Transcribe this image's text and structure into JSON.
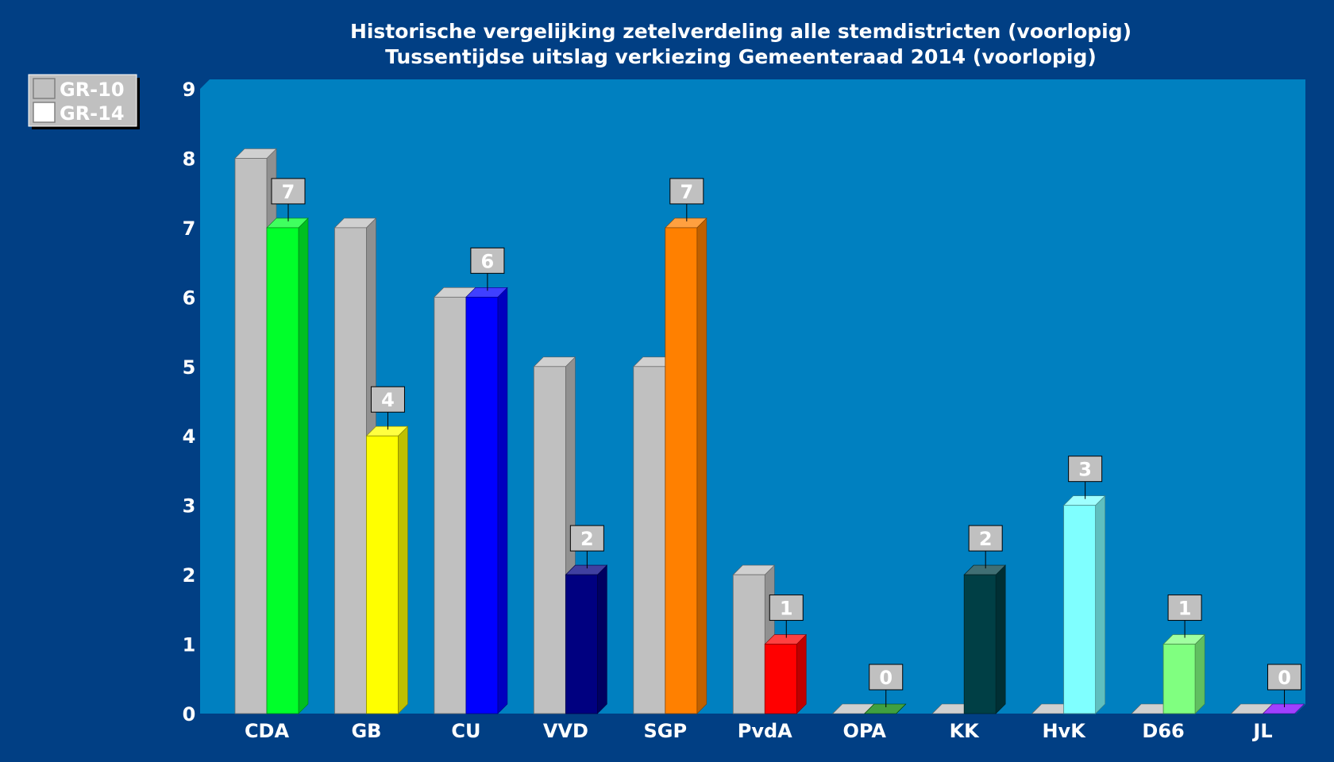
{
  "chart_data": {
    "type": "bar",
    "title": "Historische vergelijking zetelverdeling alle stemdistricten (voorlopig)",
    "subtitle": "Tussentijdse uitslag verkiezing Gemeenteraad 2014 (voorlopig)",
    "xlabel": "",
    "ylabel": "",
    "ylim": [
      0,
      9
    ],
    "yticks": [
      0,
      1,
      2,
      3,
      4,
      5,
      6,
      7,
      8,
      9
    ],
    "grid": false,
    "legend_position": "top-left",
    "categories": [
      "CDA",
      "GB",
      "CU",
      "VVD",
      "SGP",
      "PvdA",
      "OPA",
      "KK",
      "HvK",
      "D66",
      "JL"
    ],
    "series": [
      {
        "name": "GR-10",
        "values": [
          8,
          7,
          6,
          5,
          5,
          2,
          0,
          0,
          0,
          0,
          0
        ],
        "color": "#c0c0c0",
        "data_labels": false
      },
      {
        "name": "GR-14",
        "values": [
          7,
          4,
          6,
          2,
          7,
          1,
          0,
          2,
          3,
          1,
          0
        ],
        "colors": [
          "#00ff2a",
          "#ffff00",
          "#0000ff",
          "#000080",
          "#ff8000",
          "#ff0000",
          "#008000",
          "#003f45",
          "#7fffff",
          "#80ff80",
          "#8000ff"
        ],
        "data_labels": true
      }
    ],
    "legend_swatch_colors": [
      "#c0c0c0",
      "#ffffff"
    ]
  },
  "colors": {
    "page_background": "#013f84",
    "plot_background": "#0080c0",
    "text": "#ffffff",
    "label_box": "#c0c0c0"
  }
}
